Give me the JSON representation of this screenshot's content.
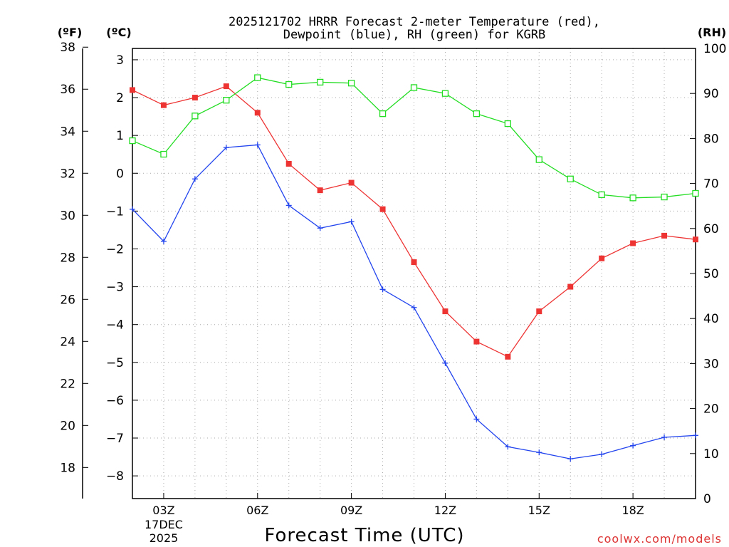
{
  "chart_data": {
    "type": "line",
    "title_line1": "2025121702 HRRR Forecast 2-meter Temperature (red),",
    "title_line2": "Dewpoint (blue), RH (green) for KGRB",
    "xlabel": "Forecast Time (UTC)",
    "left_outer_axis_label": "(ºF)",
    "left_inner_axis_label": "(ºC)",
    "right_axis_label": "(RH)",
    "watermark": "coolwx.com/models",
    "x_hours": [
      2,
      3,
      4,
      5,
      6,
      7,
      8,
      9,
      10,
      11,
      12,
      13,
      14,
      15,
      16,
      17,
      18,
      19,
      20
    ],
    "x_ticks": [
      {
        "hour": 3,
        "label": "03Z",
        "sublabel1": "17DEC",
        "sublabel2": "2025"
      },
      {
        "hour": 6,
        "label": "06Z"
      },
      {
        "hour": 9,
        "label": "09Z"
      },
      {
        "hour": 12,
        "label": "12Z"
      },
      {
        "hour": 15,
        "label": "15Z"
      },
      {
        "hour": 18,
        "label": "18Z"
      }
    ],
    "x_range": [
      2,
      20
    ],
    "celsius_range": [
      -8.6,
      3.3
    ],
    "celsius_ticks": [
      "3",
      "2",
      "1",
      "0",
      "−1",
      "−2",
      "−3",
      "−4",
      "−5",
      "−6",
      "−7",
      "−8"
    ],
    "fahrenheit_ticks": [
      "38",
      "36",
      "34",
      "32",
      "30",
      "28",
      "26",
      "24",
      "22",
      "20",
      "18"
    ],
    "rh_range": [
      0,
      100
    ],
    "rh_ticks": [
      "100",
      "90",
      "80",
      "70",
      "60",
      "50",
      "40",
      "30",
      "20",
      "10",
      "0"
    ],
    "series": [
      {
        "name": "2-meter Temperature",
        "unit": "C",
        "color": "#ee3333",
        "marker": "filled-square",
        "values": [
          2.2,
          1.8,
          2.0,
          2.3,
          1.6,
          0.25,
          -0.45,
          -0.25,
          -0.95,
          -2.35,
          -3.65,
          -4.45,
          -4.85,
          -3.65,
          -3.0,
          -2.25,
          -1.85,
          -1.65,
          -1.75
        ]
      },
      {
        "name": "Dewpoint",
        "unit": "C",
        "color": "#2244ee",
        "marker": "plus",
        "values": [
          -0.95,
          -1.8,
          -0.15,
          0.68,
          0.75,
          -0.85,
          -1.45,
          -1.28,
          -3.07,
          -3.55,
          -5.02,
          -6.5,
          -7.23,
          -7.38,
          -7.55,
          -7.43,
          -7.2,
          -6.98,
          -6.93
        ]
      },
      {
        "name": "RH",
        "unit": "%",
        "color": "#22dd22",
        "marker": "open-square",
        "values": [
          79.5,
          76.5,
          85.0,
          88.5,
          93.5,
          92.0,
          92.5,
          92.3,
          85.5,
          91.3,
          90.0,
          85.5,
          83.3,
          75.3,
          71.0,
          67.5,
          66.8,
          67.0,
          67.8
        ]
      }
    ],
    "grid": true
  }
}
